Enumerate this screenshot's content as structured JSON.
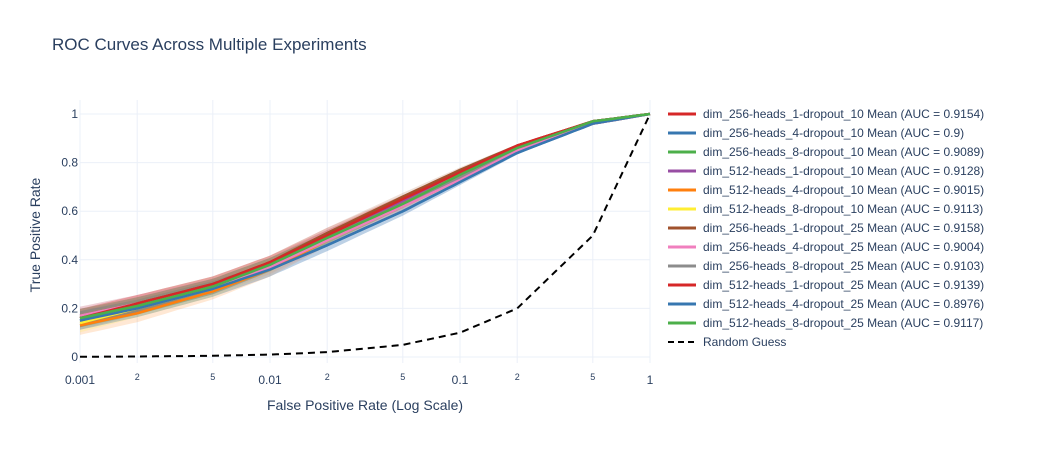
{
  "chart_data": {
    "type": "line",
    "title": "ROC Curves Across Multiple Experiments",
    "xlabel": "False Positive Rate (Log Scale)",
    "ylabel": "True Positive Rate",
    "xscale": "log",
    "xlim": [
      0.001,
      1
    ],
    "ylim": [
      0,
      1
    ],
    "grid": true,
    "legend_position": "right",
    "x_ticks_major": [
      "0.001",
      "0.01",
      "0.1",
      "1"
    ],
    "x_ticks_minor": [
      "2",
      "5",
      "2",
      "5",
      "2",
      "5"
    ],
    "y_ticks": [
      "0",
      "0.2",
      "0.4",
      "0.6",
      "0.8",
      "1"
    ],
    "x": [
      0.001,
      0.002,
      0.005,
      0.01,
      0.02,
      0.05,
      0.1,
      0.2,
      0.5,
      1
    ],
    "series": [
      {
        "name": "dim_256-heads_1-dropout_10 Mean (AUC = 0.9154)",
        "color": "#d62728",
        "values": [
          0.16,
          0.22,
          0.3,
          0.39,
          0.51,
          0.65,
          0.76,
          0.87,
          0.97,
          1.0
        ]
      },
      {
        "name": "dim_256-heads_4-dropout_10 Mean (AUC = 0.9)",
        "color": "#3777b0",
        "values": [
          0.15,
          0.2,
          0.28,
          0.36,
          0.46,
          0.6,
          0.72,
          0.84,
          0.96,
          1.0
        ]
      },
      {
        "name": "dim_256-heads_8-dropout_10 Mean (AUC = 0.9089)",
        "color": "#4caf4a",
        "values": [
          0.16,
          0.21,
          0.29,
          0.38,
          0.49,
          0.63,
          0.74,
          0.86,
          0.97,
          1.0
        ]
      },
      {
        "name": "dim_512-heads_1-dropout_10 Mean (AUC = 0.9128)",
        "color": "#984ea3",
        "values": [
          0.16,
          0.21,
          0.29,
          0.38,
          0.5,
          0.64,
          0.75,
          0.86,
          0.97,
          1.0
        ]
      },
      {
        "name": "dim_512-heads_4-dropout_10 Mean (AUC = 0.9015)",
        "color": "#ff7f0e",
        "values": [
          0.13,
          0.18,
          0.27,
          0.36,
          0.48,
          0.62,
          0.73,
          0.85,
          0.96,
          1.0
        ]
      },
      {
        "name": "dim_512-heads_8-dropout_10 Mean (AUC = 0.9113)",
        "color": "#ffee33",
        "values": [
          0.14,
          0.2,
          0.28,
          0.37,
          0.49,
          0.63,
          0.75,
          0.86,
          0.97,
          1.0
        ]
      },
      {
        "name": "dim_256-heads_1-dropout_25 Mean (AUC = 0.9158)",
        "color": "#a0522d",
        "values": [
          0.17,
          0.22,
          0.3,
          0.39,
          0.51,
          0.66,
          0.77,
          0.87,
          0.97,
          1.0
        ]
      },
      {
        "name": "dim_256-heads_4-dropout_25 Mean (AUC = 0.9004)",
        "color": "#f07fbe",
        "values": [
          0.17,
          0.22,
          0.29,
          0.37,
          0.48,
          0.62,
          0.73,
          0.85,
          0.96,
          1.0
        ]
      },
      {
        "name": "dim_256-heads_8-dropout_25 Mean (AUC = 0.9103)",
        "color": "#8c8c8c",
        "values": [
          0.15,
          0.21,
          0.29,
          0.38,
          0.49,
          0.63,
          0.74,
          0.86,
          0.97,
          1.0
        ]
      },
      {
        "name": "dim_512-heads_1-dropout_25 Mean (AUC = 0.9139)",
        "color": "#d62728",
        "values": [
          0.16,
          0.22,
          0.3,
          0.39,
          0.5,
          0.65,
          0.76,
          0.87,
          0.97,
          1.0
        ]
      },
      {
        "name": "dim_512-heads_4-dropout_25 Mean (AUC = 0.8976)",
        "color": "#3777b0",
        "values": [
          0.15,
          0.2,
          0.28,
          0.36,
          0.46,
          0.6,
          0.72,
          0.84,
          0.96,
          1.0
        ]
      },
      {
        "name": "dim_512-heads_8-dropout_25 Mean (AUC = 0.9117)",
        "color": "#4caf4a",
        "values": [
          0.16,
          0.21,
          0.29,
          0.38,
          0.49,
          0.63,
          0.75,
          0.86,
          0.97,
          1.0
        ]
      },
      {
        "name": "Random Guess",
        "color": "#000000",
        "dash": true,
        "values": [
          0.001,
          0.002,
          0.005,
          0.01,
          0.02,
          0.05,
          0.1,
          0.2,
          0.5,
          1.0
        ]
      }
    ]
  }
}
